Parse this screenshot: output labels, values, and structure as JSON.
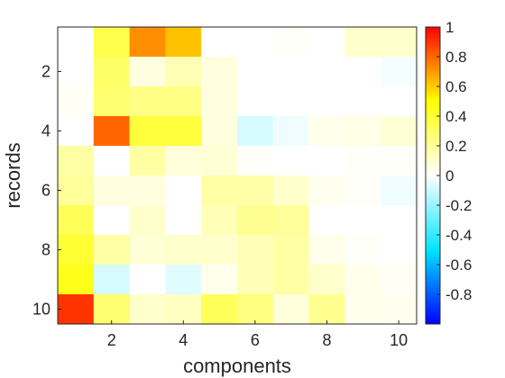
{
  "chart_data": {
    "type": "heatmap",
    "xlabel": "components",
    "ylabel": "records",
    "x": [
      1,
      2,
      3,
      4,
      5,
      6,
      7,
      8,
      9,
      10
    ],
    "y": [
      1,
      2,
      3,
      4,
      5,
      6,
      7,
      8,
      9,
      10
    ],
    "x_ticks": [
      "2",
      "4",
      "6",
      "8",
      "10"
    ],
    "y_ticks": [
      "2",
      "4",
      "6",
      "8",
      "10"
    ],
    "y_reversed": true,
    "clim": [
      -1,
      1
    ],
    "colorbar_ticks": [
      "1",
      "0.8",
      "0.6",
      "0.4",
      "0.2",
      "0",
      "-0.2",
      "-0.4",
      "-0.6",
      "-0.8"
    ],
    "colormap": "jet-like diverging (blue-cyan-white-yellow-red)",
    "grid": false,
    "colorbar_placement": "right",
    "values": [
      [
        0.0,
        0.35,
        0.72,
        0.62,
        0.0,
        0.0,
        0.01,
        0.0,
        0.1,
        0.1
      ],
      [
        0.0,
        0.3,
        0.06,
        0.15,
        0.06,
        0.0,
        0.0,
        0.0,
        0.0,
        -0.02
      ],
      [
        0.02,
        0.28,
        0.24,
        0.24,
        0.06,
        0.0,
        0.0,
        0.0,
        0.0,
        0.0
      ],
      [
        0.0,
        0.8,
        0.38,
        0.38,
        0.06,
        -0.08,
        -0.03,
        0.04,
        0.05,
        0.08
      ],
      [
        0.18,
        0.0,
        0.18,
        0.07,
        0.08,
        0.01,
        0.0,
        0.0,
        0.01,
        0.01
      ],
      [
        0.2,
        0.06,
        0.06,
        0.0,
        0.18,
        0.17,
        0.1,
        0.03,
        0.01,
        -0.03
      ],
      [
        0.33,
        0.0,
        0.1,
        0.0,
        0.14,
        0.22,
        0.2,
        0.0,
        0.0,
        0.0
      ],
      [
        0.4,
        0.18,
        0.08,
        0.1,
        0.1,
        0.14,
        0.18,
        0.04,
        0.01,
        0.0
      ],
      [
        0.45,
        -0.08,
        0.0,
        -0.06,
        0.04,
        0.14,
        0.18,
        0.1,
        0.04,
        0.02
      ],
      [
        0.9,
        0.28,
        0.1,
        0.12,
        0.32,
        0.25,
        0.07,
        0.22,
        0.04,
        0.03
      ]
    ]
  }
}
